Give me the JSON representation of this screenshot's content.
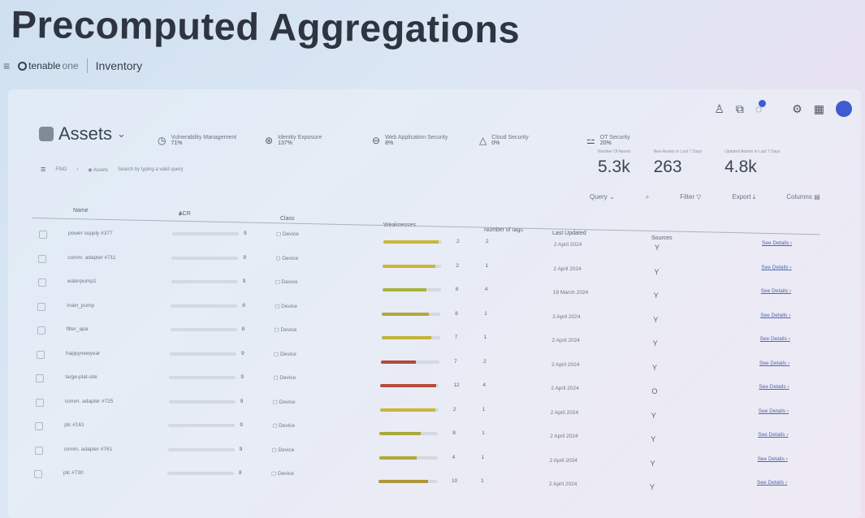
{
  "slide_title": "Precomputed Aggregations",
  "topbar": {
    "menu_icon": "hamburger-icon",
    "logo": "tenable",
    "logo_suffix": "one",
    "section": "Inventory"
  },
  "assets": {
    "title": "Assets",
    "caret": "⌄"
  },
  "categories": [
    {
      "icon": "vm-icon",
      "label": "Vulnerability Management",
      "pct": "71%"
    },
    {
      "icon": "identity-icon",
      "label": "Identity Exposure",
      "pct": "137%"
    },
    {
      "icon": "web-icon",
      "label": "Web Application Security",
      "pct": "8%"
    },
    {
      "icon": "cloud-icon",
      "label": "Cloud Security",
      "pct": "0%"
    },
    {
      "icon": "ot-icon",
      "label": "OT Security",
      "pct": "20%"
    }
  ],
  "stats": [
    {
      "label": "Number Of Assets",
      "value": "5.3k"
    },
    {
      "label": "New Assets In Last 7 Days",
      "value": "263"
    },
    {
      "label": "Updated Assets In Last 7 Days",
      "value": "4.8k"
    }
  ],
  "query": {
    "find": "FIND",
    "asset_label": "Assets",
    "placeholder": "Search by typing a valid query"
  },
  "toolbar": {
    "query": "Query",
    "filter": "Filter",
    "export": "Export",
    "columns": "Columns"
  },
  "columns": {
    "name": "Name",
    "acr": "ACR",
    "class": "Class",
    "weaknesses": "Weaknesses",
    "tags": "Number of tags",
    "updated": "Last Updated",
    "sources": "Sources"
  },
  "rows": [
    {
      "name": "power supply #377",
      "acr": "9",
      "class": "Device",
      "weak": "2",
      "tags": "2",
      "updated": "2 April 2024",
      "src": "Y",
      "details": "See Details"
    },
    {
      "name": "comm. adapter #711",
      "acr": "9",
      "class": "Device",
      "weak": "2",
      "tags": "1",
      "updated": "2 April 2024",
      "src": "Y",
      "details": "See Details"
    },
    {
      "name": "waterpump1",
      "acr": "9",
      "class": "Device",
      "weak": "8",
      "tags": "4",
      "updated": "19 March 2024",
      "src": "Y",
      "details": "See Details"
    },
    {
      "name": "main_pump",
      "acr": "8",
      "class": "Device",
      "weak": "8",
      "tags": "1",
      "updated": "2 April 2024",
      "src": "Y",
      "details": "See Details"
    },
    {
      "name": "filter_apa",
      "acr": "8",
      "class": "Device",
      "weak": "7",
      "tags": "1",
      "updated": "2 April 2024",
      "src": "Y",
      "details": "See Details"
    },
    {
      "name": "happynewyear",
      "acr": "9",
      "class": "Device",
      "weak": "7",
      "tags": "2",
      "updated": "2 April 2024",
      "src": "Y",
      "details": "See Details"
    },
    {
      "name": "large-plat-site",
      "acr": "9",
      "class": "Device",
      "weak": "12",
      "tags": "4",
      "updated": "2 April 2024",
      "src": "O",
      "details": "See Details"
    },
    {
      "name": "comm. adapter #725",
      "acr": "9",
      "class": "Device",
      "weak": "2",
      "tags": "1",
      "updated": "2 April 2024",
      "src": "Y",
      "details": "See Details"
    },
    {
      "name": "plc #161",
      "acr": "9",
      "class": "Device",
      "weak": "8",
      "tags": "1",
      "updated": "2 April 2024",
      "src": "Y",
      "details": "See Details"
    },
    {
      "name": "comm. adapter #761",
      "acr": "9",
      "class": "Device",
      "weak": "4",
      "tags": "1",
      "updated": "2 April 2024",
      "src": "Y",
      "details": "See Details"
    },
    {
      "name": "plc #730",
      "acr": "8",
      "class": "Device",
      "weak": "10",
      "tags": "1",
      "updated": "2 April 2024",
      "src": "Y",
      "details": "See Details"
    }
  ]
}
